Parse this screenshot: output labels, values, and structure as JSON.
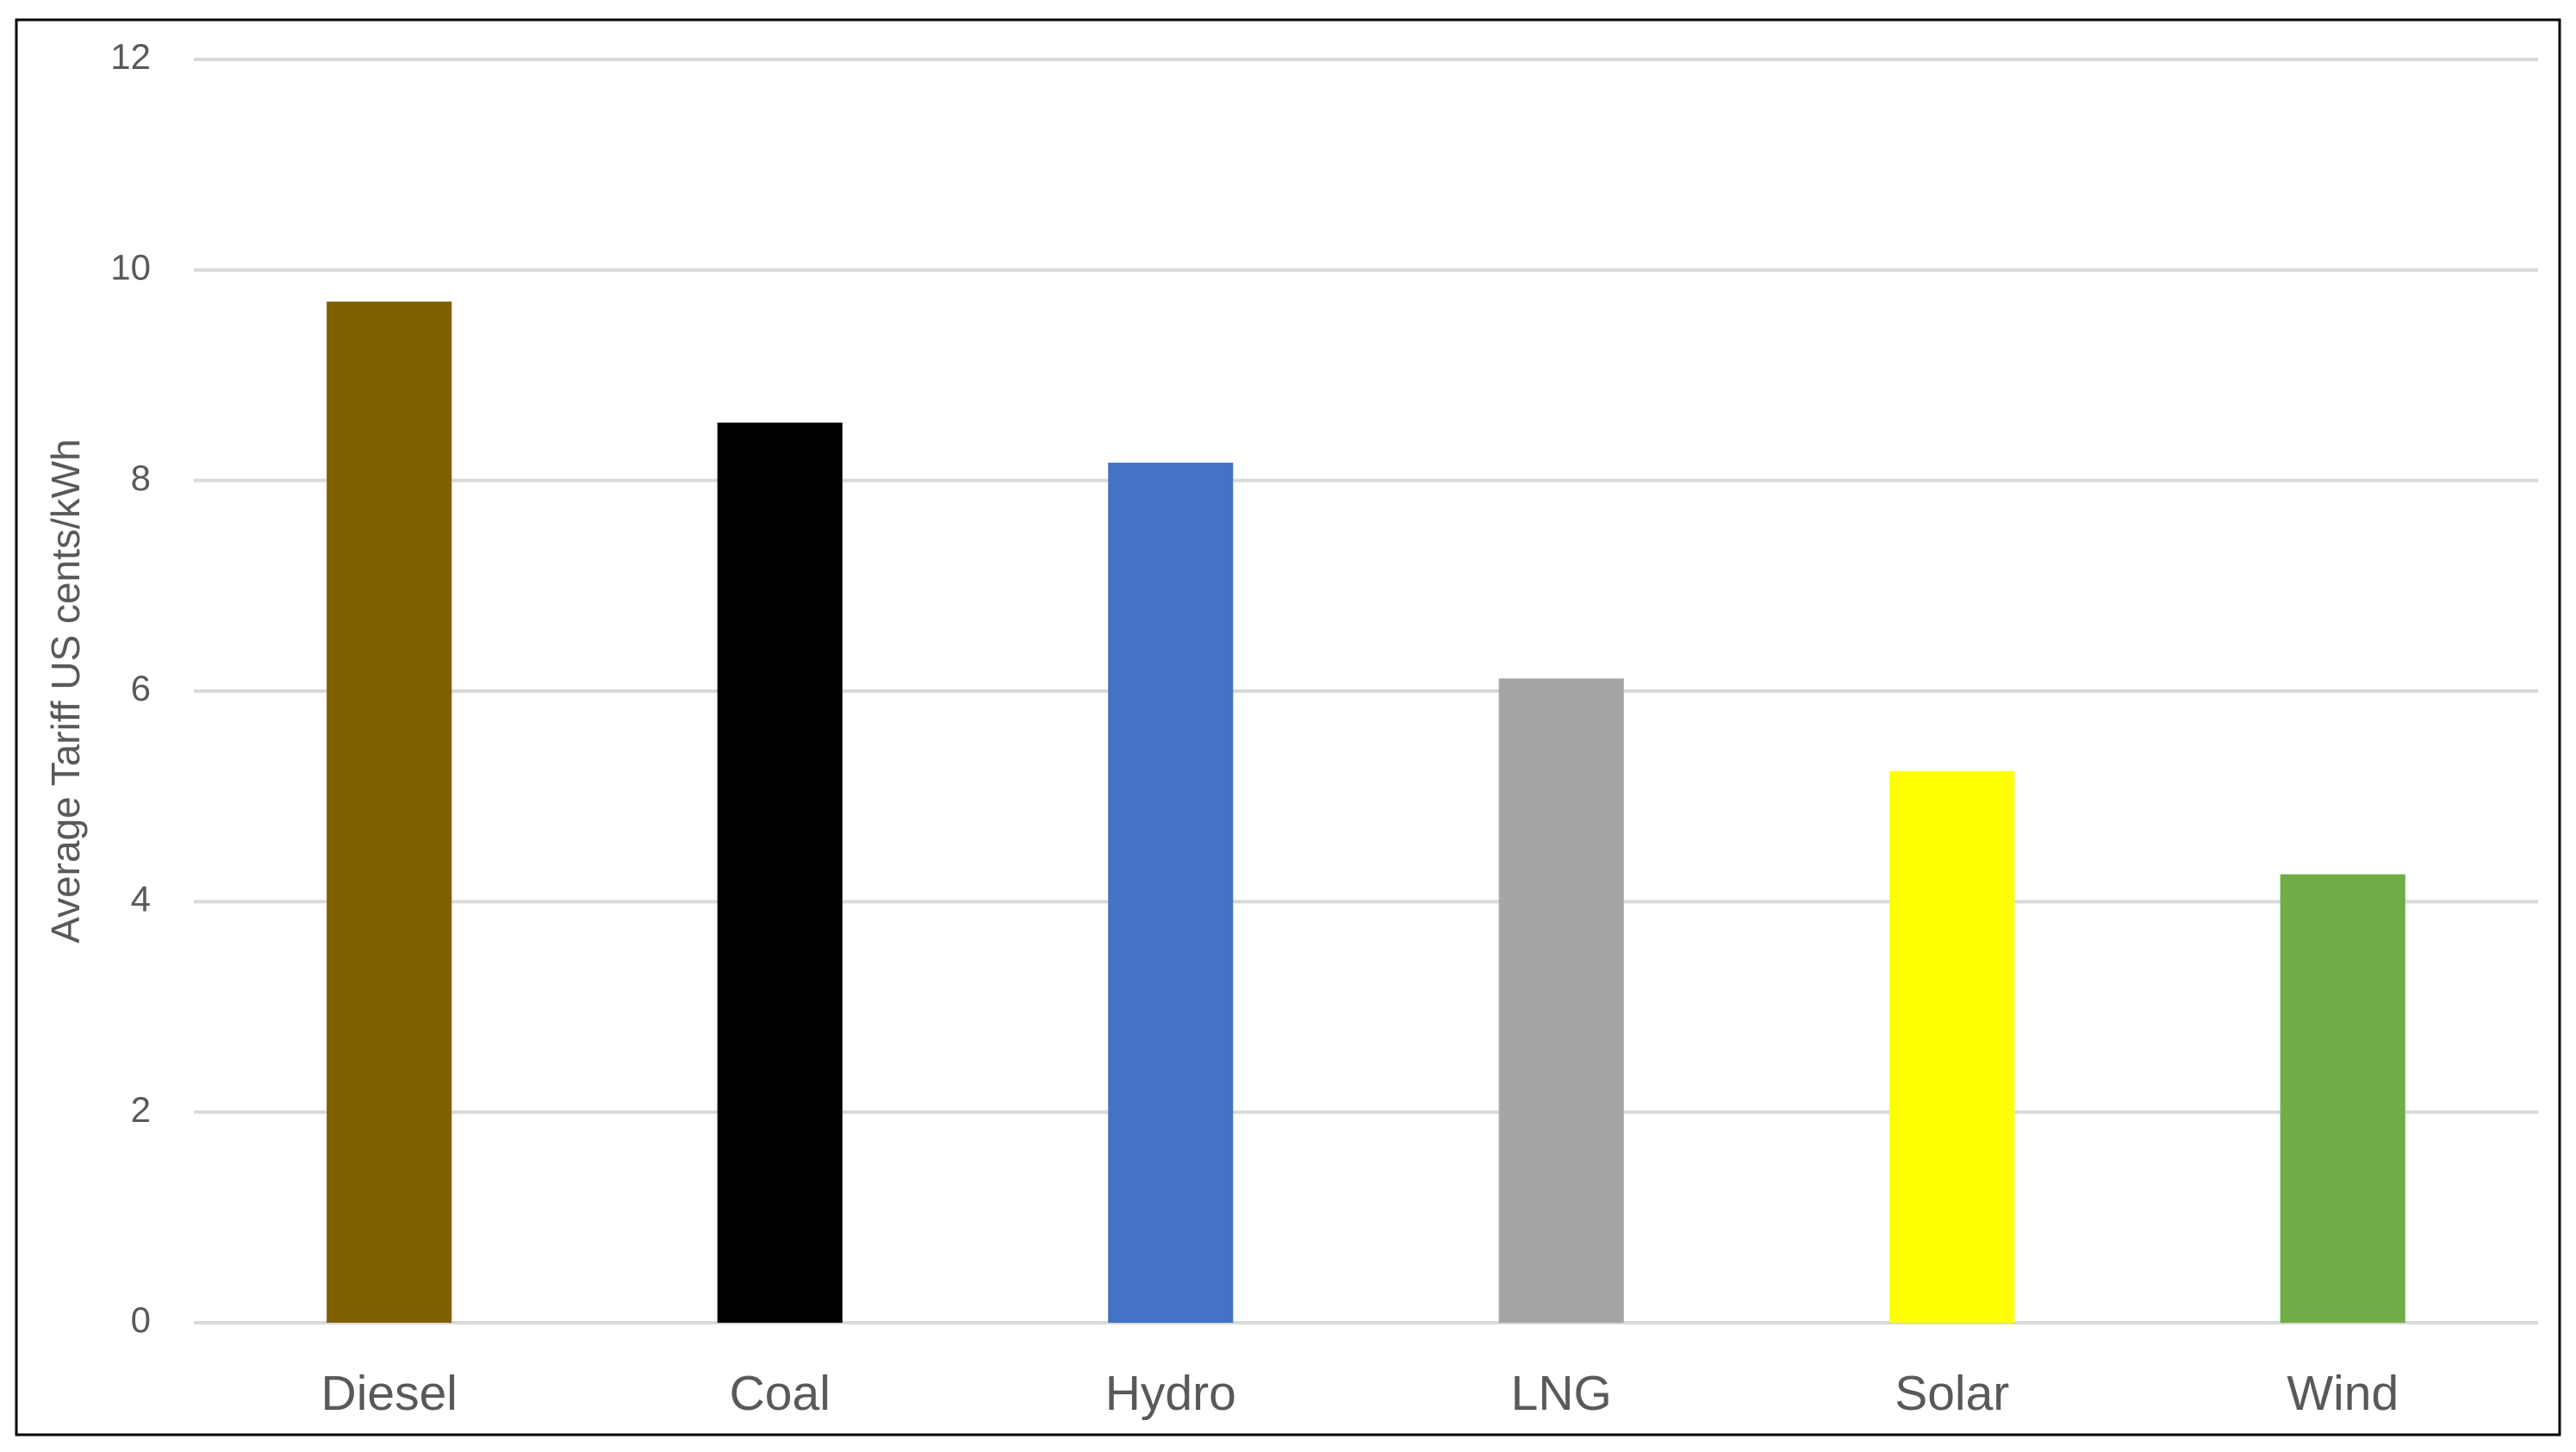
{
  "chart_data": {
    "type": "bar",
    "y_label": "Average Tariff US cents/kWh",
    "categories": [
      "Diesel",
      "Coal",
      "Hydro",
      "LNG",
      "Solar",
      "Wind"
    ],
    "values": [
      9.7,
      8.55,
      8.17,
      6.12,
      5.24,
      4.26
    ],
    "colors": [
      "#7f6000",
      "#000000",
      "#4472c4",
      "#a5a5a5",
      "#ffff00",
      "#70ad47"
    ],
    "ylim": [
      0,
      12
    ],
    "yticks": [
      0,
      2,
      4,
      6,
      8,
      10,
      12
    ],
    "grid": true
  }
}
